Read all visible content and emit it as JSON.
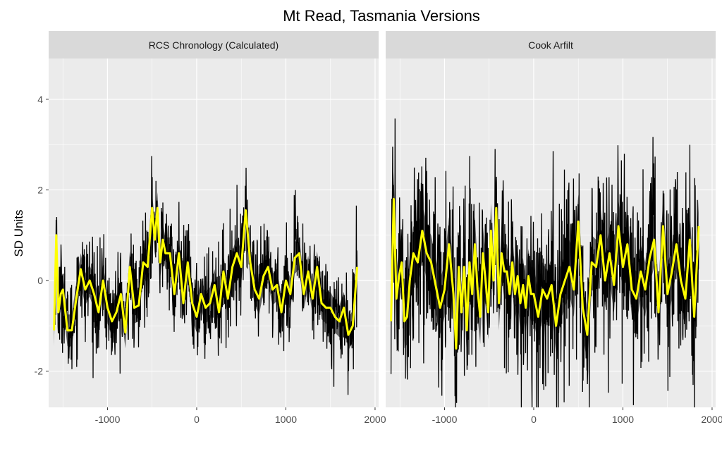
{
  "chart_data": {
    "type": "line",
    "title": "Mt Read, Tasmania Versions",
    "xlabel": "",
    "ylabel": "SD Units",
    "xlim": [
      -1660,
      2040
    ],
    "ylim": [
      -2.8,
      4.9
    ],
    "xticks": [
      -1000,
      0,
      1000,
      2000
    ],
    "yticks": [
      -2,
      0,
      2,
      4
    ],
    "grid": true,
    "colors": {
      "panel_bg": "#ebebeb",
      "strip_bg": "#d9d9d9",
      "grid": "#ffffff",
      "annual": "#000000",
      "band": "#4d4d4d",
      "smooth": "#ffff00"
    },
    "panels": [
      {
        "strip": "RCS Chronology (Calculated)",
        "smooth": {
          "name": "",
          "x": [
            -1600,
            -1575,
            -1550,
            -1525,
            -1500,
            -1450,
            -1400,
            -1350,
            -1300,
            -1250,
            -1200,
            -1150,
            -1100,
            -1050,
            -1000,
            -950,
            -900,
            -850,
            -800,
            -750,
            -700,
            -650,
            -600,
            -550,
            -500,
            -470,
            -440,
            -410,
            -380,
            -350,
            -300,
            -250,
            -200,
            -150,
            -100,
            -50,
            0,
            50,
            100,
            150,
            200,
            250,
            300,
            350,
            400,
            450,
            500,
            550,
            600,
            650,
            700,
            750,
            800,
            850,
            900,
            950,
            1000,
            1050,
            1100,
            1150,
            1200,
            1250,
            1300,
            1350,
            1400,
            1450,
            1500,
            1550,
            1600,
            1650,
            1700,
            1750,
            1800,
            1850,
            1900,
            1950,
            2000
          ],
          "y": [
            -1.1,
            1.0,
            -0.7,
            -0.3,
            -0.2,
            -1.1,
            -1.1,
            -0.4,
            0.25,
            -0.2,
            0.0,
            -0.3,
            -0.7,
            0.0,
            -0.6,
            -0.9,
            -0.7,
            -0.3,
            -1.15,
            0.3,
            -0.6,
            -0.55,
            0.4,
            0.3,
            1.6,
            0.9,
            1.6,
            0.4,
            0.9,
            0.6,
            0.6,
            -0.3,
            0.6,
            -0.5,
            0.4,
            -0.5,
            -0.8,
            -0.3,
            -0.6,
            -0.5,
            -0.1,
            -0.7,
            0.2,
            -0.4,
            0.3,
            0.6,
            0.3,
            1.55,
            0.4,
            -0.2,
            -0.4,
            0.1,
            0.3,
            -0.2,
            -0.1,
            -0.7,
            0.0,
            -0.3,
            0.5,
            0.6,
            -0.3,
            0.2,
            -0.4,
            0.3,
            -0.5,
            -0.6,
            -0.6,
            -0.8,
            -0.9,
            -0.6,
            -1.2,
            -1.0,
            0.3,
            null,
            null,
            null,
            null
          ],
          "x_note": ""
        }
      },
      {
        "strip": "Cook Arfilt",
        "smooth": {
          "name": "",
          "x": [
            -1600,
            -1570,
            -1540,
            -1510,
            -1480,
            -1450,
            -1420,
            -1390,
            -1350,
            -1300,
            -1250,
            -1200,
            -1150,
            -1100,
            -1050,
            -1000,
            -950,
            -900,
            -870,
            -840,
            -810,
            -780,
            -750,
            -720,
            -690,
            -660,
            -630,
            -600,
            -570,
            -540,
            -510,
            -480,
            -450,
            -420,
            -390,
            -360,
            -330,
            -300,
            -270,
            -240,
            -210,
            -180,
            -150,
            -120,
            -90,
            -60,
            -30,
            0,
            50,
            100,
            150,
            200,
            250,
            300,
            350,
            400,
            450,
            500,
            550,
            600,
            650,
            700,
            750,
            800,
            850,
            900,
            950,
            1000,
            1050,
            1100,
            1150,
            1200,
            1250,
            1300,
            1350,
            1400,
            1450,
            1500,
            1550,
            1600,
            1650,
            1700,
            1750,
            1800,
            1850,
            1900,
            1950,
            2000
          ],
          "y": [
            -0.9,
            1.8,
            -0.4,
            0.1,
            0.4,
            -0.9,
            -0.8,
            0.0,
            0.6,
            0.4,
            1.1,
            0.6,
            0.4,
            -0.1,
            -0.6,
            -0.2,
            0.8,
            -0.3,
            -1.5,
            0.3,
            -0.7,
            0.3,
            -1.1,
            0.4,
            -0.3,
            0.8,
            -0.2,
            -0.8,
            0.6,
            0.0,
            -0.7,
            1.1,
            0.0,
            1.6,
            -0.5,
            0.6,
            0.2,
            0.2,
            -0.3,
            0.4,
            -0.3,
            0.1,
            -0.5,
            -0.1,
            -0.6,
            0.1,
            -0.3,
            -0.3,
            -0.8,
            -0.2,
            -0.4,
            -0.1,
            -1.0,
            -0.3,
            0.0,
            0.3,
            -0.2,
            1.3,
            -0.6,
            -1.2,
            0.4,
            0.3,
            1.0,
            0.0,
            0.6,
            -0.1,
            1.2,
            0.3,
            0.8,
            -0.2,
            -0.4,
            0.2,
            -0.2,
            0.5,
            0.9,
            -0.7,
            1.2,
            -0.3,
            0.2,
            0.8,
            0.0,
            -0.4,
            0.9,
            -0.8,
            1.2,
            null,
            null,
            null
          ],
          "x_note": ""
        }
      }
    ]
  }
}
